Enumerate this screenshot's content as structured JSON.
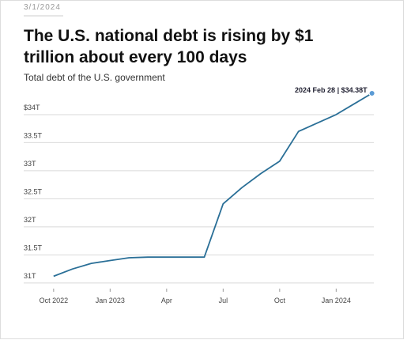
{
  "date": "3/1/2024",
  "chart_data": {
    "type": "line",
    "title": "The U.S. national debt is rising by $1 trillion about every 100 days",
    "subtitle": "Total debt of the U.S. government",
    "annotation": "2024 Feb 28 | $34.38T",
    "color": "#2a6f97",
    "grid": true,
    "x": [
      "2022-10",
      "2022-11",
      "2022-12",
      "2023-01",
      "2023-02",
      "2023-03",
      "2023-04",
      "2023-05",
      "2023-06",
      "2023-07",
      "2023-08",
      "2023-09",
      "2023-10",
      "2023-11",
      "2023-12",
      "2024-01",
      "2024-02",
      "2024-02-28"
    ],
    "values": [
      31.12,
      31.25,
      31.35,
      31.4,
      31.45,
      31.46,
      31.46,
      31.46,
      31.46,
      32.41,
      32.7,
      32.95,
      33.17,
      33.7,
      33.85,
      34.0,
      34.2,
      34.38
    ],
    "xlim": [
      "2022-09",
      "2024-03"
    ],
    "xticks": [
      {
        "value": "2022-10",
        "label": "Oct 2022"
      },
      {
        "value": "2023-01",
        "label": "Jan 2023"
      },
      {
        "value": "2023-04",
        "label": "Apr"
      },
      {
        "value": "2023-07",
        "label": "Jul"
      },
      {
        "value": "2023-10",
        "label": "Oct"
      },
      {
        "value": "2024-01",
        "label": "Jan 2024"
      }
    ],
    "ylim": [
      30.9,
      34.45
    ],
    "yticks": [
      {
        "value": 31,
        "label": "31T"
      },
      {
        "value": 31.5,
        "label": "31.5T"
      },
      {
        "value": 32,
        "label": "32T"
      },
      {
        "value": 32.5,
        "label": "32.5T"
      },
      {
        "value": 33,
        "label": "33T"
      },
      {
        "value": 33.5,
        "label": "33.5T"
      },
      {
        "value": 34,
        "label": "$34T"
      }
    ]
  }
}
